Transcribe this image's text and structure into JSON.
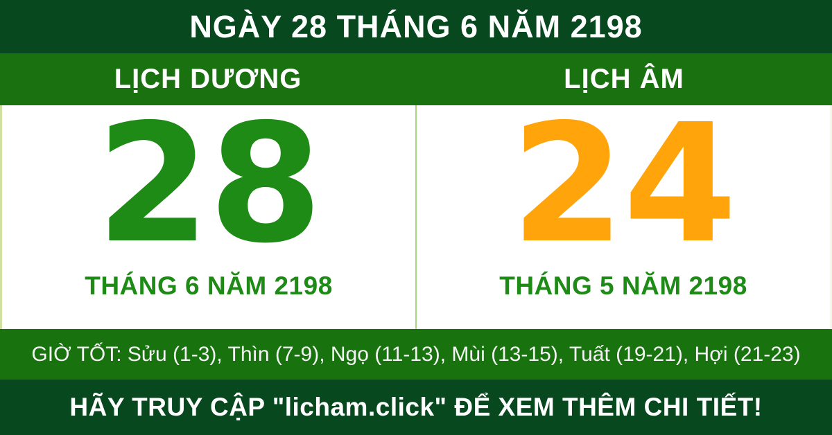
{
  "header": {
    "title": "NGÀY 28 THÁNG 6 NĂM 2198"
  },
  "solar": {
    "label": "LỊCH DƯƠNG",
    "day": "28",
    "month_year": "THÁNG 6 NĂM 2198"
  },
  "lunar": {
    "label": "LỊCH ÂM",
    "day": "24",
    "month_year": "THÁNG 5 NĂM 2198"
  },
  "good_hours": {
    "label": "GIỜ TỐT",
    "text": "GIỜ TỐT: Sửu (1-3), Thìn (7-9), Ngọ (11-13), Mùi (13-15), Tuất (19-21), Hợi (21-23)",
    "hours": [
      {
        "name": "Sửu",
        "range": "1-3"
      },
      {
        "name": "Thìn",
        "range": "7-9"
      },
      {
        "name": "Ngọ",
        "range": "11-13"
      },
      {
        "name": "Mùi",
        "range": "13-15"
      },
      {
        "name": "Tuất",
        "range": "19-21"
      },
      {
        "name": "Hợi",
        "range": "21-23"
      }
    ]
  },
  "footer": {
    "text": "HÃY TRUY CẬP \"licham.click\" ĐỂ XEM THÊM CHI TIẾT!",
    "website": "licham.click"
  },
  "colors": {
    "dark-green": "#07481f",
    "band-green": "#1a7110",
    "solar-day-green": "#1f8b17",
    "lunar-day-orange": "#ffa40a",
    "month-green": "#1f8b17",
    "divider-green": "#a9d77f",
    "good-hours-green": "#18730f"
  }
}
